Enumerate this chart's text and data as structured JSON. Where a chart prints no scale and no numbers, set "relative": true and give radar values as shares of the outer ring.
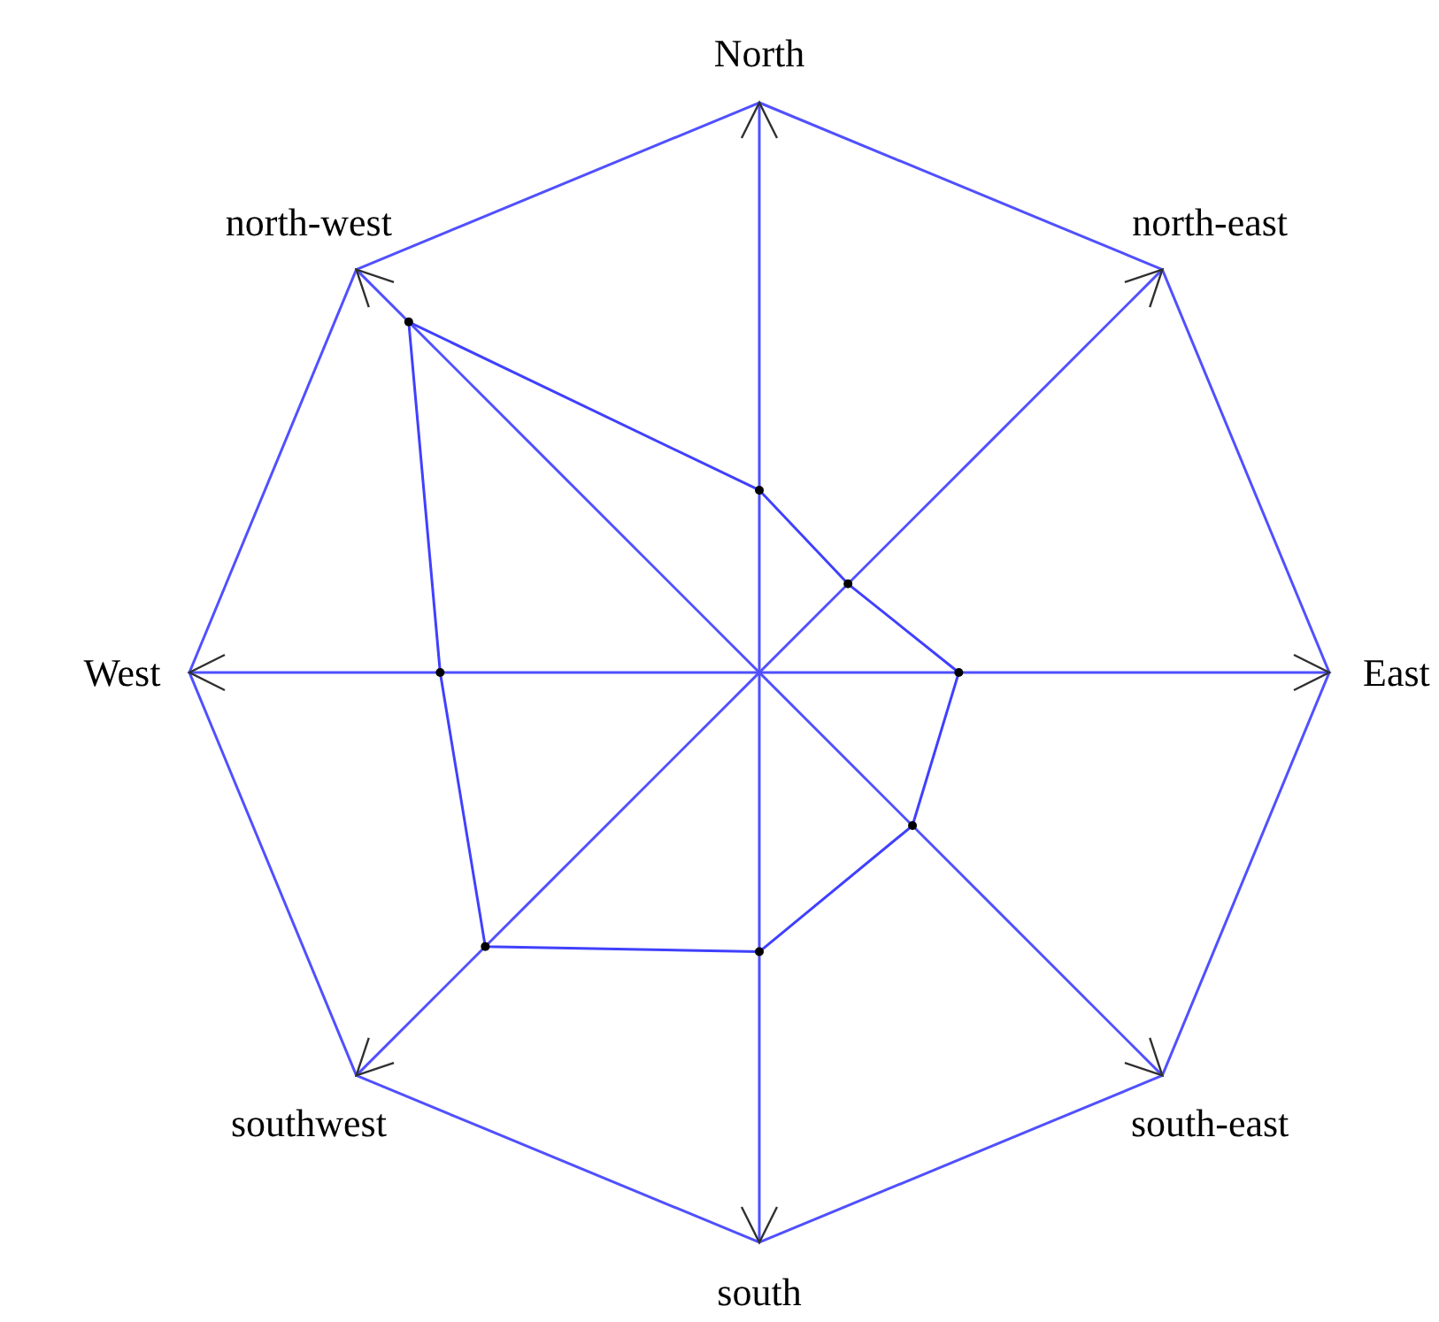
{
  "chart_data": {
    "type": "radar",
    "relative": true,
    "marker": "circle",
    "categories": [
      "North",
      "north-east",
      "East",
      "south-east",
      "south",
      "southwest",
      "West",
      "north-west"
    ],
    "series": [
      {
        "color": "#4040ff",
        "values": [
          0.32,
          0.22,
          0.35,
          0.38,
          0.49,
          0.68,
          0.56,
          0.87
        ]
      }
    ]
  }
}
